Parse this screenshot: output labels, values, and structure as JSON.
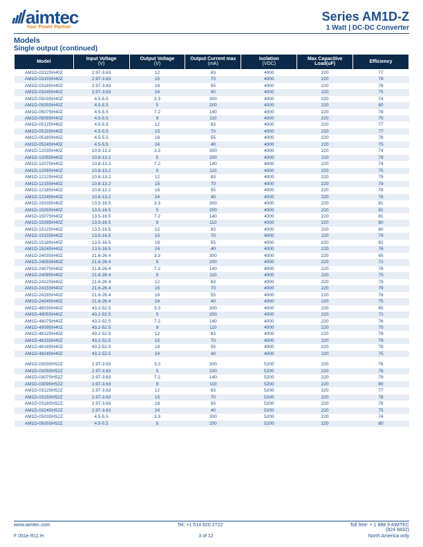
{
  "header": {
    "logo_text": "aimtec",
    "tagline": "Your Power Partner",
    "series": "Series AM1D-Z",
    "subtitle": "1 Watt | DC-DC Converter"
  },
  "section": {
    "title": "Models",
    "subtitle": "Single output (continued)"
  },
  "columns": [
    {
      "label": "Model",
      "unit": ""
    },
    {
      "label": "Input Voltage",
      "unit": "(V)"
    },
    {
      "label": "Output Voltage",
      "unit": "(V)"
    },
    {
      "label": "Output Current max",
      "unit": "(mA)"
    },
    {
      "label": "Isolation",
      "unit": "(VDC)"
    },
    {
      "label": "Max Capacitive Load(uF)",
      "unit": ""
    },
    {
      "label": "Efficiency",
      "unit": ""
    }
  ],
  "rows": [
    [
      "AM1D-0312SH40Z",
      "2.97-3.63",
      "12",
      "83",
      "4000",
      "220",
      "77"
    ],
    [
      "AM1D-0315SH40Z",
      "2.97-3.63",
      "15",
      "70",
      "4000",
      "220",
      "78"
    ],
    [
      "AM1D-0318SH40Z",
      "2.97-3.63",
      "18",
      "55",
      "4000",
      "220",
      "78"
    ],
    [
      "AM1D-0324SH40Z",
      "2.97-3.63",
      "24",
      "40",
      "4000",
      "220",
      "75"
    ],
    [
      "AM1D-0503SH40Z",
      "4.5-5.5",
      "3.3",
      "300",
      "4000",
      "220",
      "74"
    ],
    [
      "AM1D-0505SH40Z",
      "4.5-5.5",
      "5",
      "200",
      "4000",
      "220",
      "80"
    ],
    [
      "AM1D-0507SH40Z",
      "4.5-5.5",
      "7.2",
      "140",
      "4000",
      "220",
      "78"
    ],
    [
      "AM1D-0509SH40Z",
      "4.5-5.5",
      "9",
      "110",
      "4000",
      "220",
      "75"
    ],
    [
      "AM1D-0512SH40Z",
      "4.5-5.5",
      "12",
      "83",
      "4000",
      "220",
      "77"
    ],
    [
      "AM1D-0515SH40Z",
      "4.5-5.5",
      "15",
      "70",
      "4000",
      "220",
      "77"
    ],
    [
      "AM1D-0518SH40Z",
      "4.5-5.5",
      "18",
      "55",
      "4000",
      "220",
      "78"
    ],
    [
      "AM1D-0524SH40Z",
      "4.5-5.5",
      "24",
      "40",
      "4000",
      "220",
      "75"
    ],
    [
      "AM1D-1203SH40Z",
      "10.8-13.2",
      "3.3",
      "300",
      "4000",
      "220",
      "74"
    ],
    [
      "AM1D-1205SH40Z",
      "10.8-13.2",
      "5",
      "200",
      "4000",
      "220",
      "79"
    ],
    [
      "AM1D-1207SH40Z",
      "10.8-13.2",
      "7.2",
      "140",
      "4000",
      "220",
      "74"
    ],
    [
      "AM1D-1209SH40Z",
      "10.8-13.2",
      "9",
      "110",
      "4000",
      "220",
      "75"
    ],
    [
      "AM1D-1212SH40Z",
      "10.8-13.2",
      "12",
      "83",
      "4000",
      "220",
      "79"
    ],
    [
      "AM1D-1215SH40Z",
      "10.8-13.2",
      "15",
      "70",
      "4000",
      "220",
      "79"
    ],
    [
      "AM1D-1218SH40Z",
      "10.8-13.2",
      "18",
      "55",
      "4000",
      "220",
      "78"
    ],
    [
      "AM1D-1224SH40Z",
      "10.8-13.2",
      "24",
      "40",
      "4000",
      "220",
      "76"
    ],
    [
      "AM1D-1503SH40Z",
      "13.5-16.5",
      "3.3",
      "300",
      "4000",
      "220",
      "81"
    ],
    [
      "AM1D-1505SH40Z",
      "13.5-16.5",
      "5",
      "200",
      "4000",
      "220",
      "81"
    ],
    [
      "AM1D-1507SH40Z",
      "13.5-16.5",
      "7.2",
      "140",
      "4000",
      "220",
      "81"
    ],
    [
      "AM1D-1509SH40Z",
      "13.5-16.5",
      "9",
      "110",
      "4000",
      "220",
      "80"
    ],
    [
      "AM1D-1512SH40Z",
      "13.5-16.5",
      "12",
      "83",
      "4000",
      "220",
      "80"
    ],
    [
      "AM1D-1515SH40Z",
      "13.5-16.5",
      "15",
      "70",
      "4000",
      "220",
      "79"
    ],
    [
      "AM1D-1518SH40Z",
      "13.5-16.5",
      "18",
      "55",
      "4000",
      "220",
      "82"
    ],
    [
      "AM1D-1524SH40Z",
      "13.5-16.5",
      "24",
      "40",
      "4000",
      "220",
      "76"
    ],
    [
      "AM1D-2403SH40Z",
      "21.6-26.4",
      "3.3",
      "300",
      "4000",
      "220",
      "65"
    ],
    [
      "AM1D-2405SH40Z",
      "21.6-26.4",
      "5",
      "200",
      "4000",
      "220",
      "72"
    ],
    [
      "AM1D-2407SH40Z",
      "21.6-26.4",
      "7.2",
      "140",
      "4000",
      "220",
      "76"
    ],
    [
      "AM1D-2409SH40Z",
      "21.6-26.4",
      "9",
      "110",
      "4000",
      "220",
      "75"
    ],
    [
      "AM1D-2412SH40Z",
      "21.6-26.4",
      "12",
      "83",
      "4000",
      "220",
      "79"
    ],
    [
      "AM1D-2415SH40Z",
      "21.6-26.4",
      "15",
      "70",
      "4000",
      "220",
      "79"
    ],
    [
      "AM1D-2418SH40Z",
      "21.6-26.4",
      "18",
      "55",
      "4000",
      "220",
      "78"
    ],
    [
      "AM1D-2424SH40Z",
      "21.6-26.4",
      "24",
      "40",
      "4000",
      "220",
      "75"
    ],
    [
      "AM1D-4803SH40Z",
      "43.2-52.5",
      "3.3",
      "300",
      "4000",
      "220",
      "65"
    ],
    [
      "AM1D-4805SH40Z",
      "43.2-52.5",
      "5",
      "200",
      "4000",
      "220",
      "72"
    ],
    [
      "AM1D-4807SH40Z",
      "43.2-52.5",
      "7.2",
      "140",
      "4000",
      "220",
      "76"
    ],
    [
      "AM1D-4809SH40Z",
      "43.2-52.5",
      "9",
      "110",
      "4000",
      "220",
      "75"
    ],
    [
      "AM1D-4812SH40Z",
      "43.2-52.5",
      "12",
      "83",
      "4000",
      "220",
      "79"
    ],
    [
      "AM1D-4815SH40Z",
      "43.2-52.5",
      "15",
      "70",
      "4000",
      "220",
      "79"
    ],
    [
      "AM1D-4818SH40Z",
      "43.2-52.5",
      "18",
      "55",
      "4000",
      "220",
      "78"
    ],
    [
      "AM1D-4824SH40Z",
      "43.2-52.5",
      "24",
      "40",
      "4000",
      "220",
      "75"
    ]
  ],
  "rows2": [
    [
      "AM1D-0303SH52Z",
      "2.97-3.63",
      "3.3",
      "300",
      "5200",
      "220",
      "76"
    ],
    [
      "AM1D-0305SH52Z",
      "2.97-3.63",
      "5",
      "200",
      "5200",
      "220",
      "78"
    ],
    [
      "AM1D-0307SH52Z",
      "2.97-3.63",
      "7.2",
      "140",
      "5200",
      "220",
      "79"
    ],
    [
      "AM1D-0309SH52Z",
      "2.97-3.63",
      "9",
      "110",
      "5200",
      "220",
      "80"
    ],
    [
      "AM1D-0312SH52Z",
      "2.97-3.63",
      "12",
      "83",
      "5200",
      "220",
      "77"
    ],
    [
      "AM1D-0315SH52Z",
      "2.97-3.63",
      "15",
      "70",
      "5200",
      "220",
      "78"
    ],
    [
      "AM1D-0318SH52Z",
      "2.97-3.63",
      "18",
      "55",
      "5200",
      "220",
      "78"
    ],
    [
      "AM1D-0324SH52Z",
      "2.97-3.63",
      "24",
      "40",
      "5200",
      "220",
      "75"
    ],
    [
      "AM1D-0503SH52Z",
      "4.5-5.5",
      "3.3",
      "300",
      "5200",
      "220",
      "74"
    ],
    [
      "AM1D-0505SH52Z",
      "4.5-5.5",
      "5",
      "200",
      "5200",
      "220",
      "80"
    ]
  ],
  "footer": {
    "url": "www.aimtec.com",
    "tel": "Tel: +1 514 620 2722",
    "tollfree": "Toll free: + 1 888 9 AIMTEC",
    "tollfree_num": "(924 6832)",
    "rev": "F 051e R11.H",
    "page": "3 of 12",
    "region": "North America only"
  },
  "colors": {
    "header_bg": "#0b2a4a",
    "text_primary": "#1a4e8a",
    "row_alt": "#e6edf5",
    "accent": "#e58a1f"
  }
}
